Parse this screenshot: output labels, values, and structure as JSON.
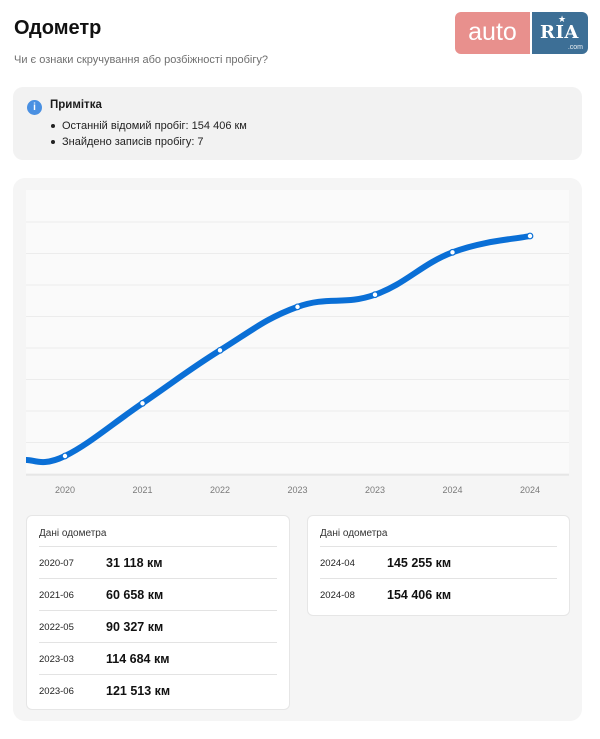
{
  "page": {
    "title": "Одометр",
    "subtitle": "Чи є ознаки скручування або розбіжності пробігу?"
  },
  "logo": {
    "part1": "auto",
    "part2": "RIA",
    "suffix": ".com"
  },
  "note": {
    "icon": "info-icon",
    "title": "Примітка",
    "items": [
      "Останній відомий пробіг: 154 406 км",
      "Знайдено записів пробігу: 7"
    ]
  },
  "colors": {
    "line": "#0a6fd6",
    "note_icon": "#4a90e2",
    "logo_auto": "#e8908d",
    "logo_ria": "#3d6f96"
  },
  "chart_data": {
    "type": "line",
    "x": [
      "2020-07",
      "2021-06",
      "2022-05",
      "2023-03",
      "2023-06",
      "2024-04",
      "2024-08"
    ],
    "tick_labels": [
      "2020",
      "2021",
      "2022",
      "2023",
      "2023",
      "2024",
      "2024"
    ],
    "series": [
      {
        "values": [
          31118,
          60658,
          90327,
          114684,
          121513,
          145255,
          154406
        ]
      }
    ],
    "grid": "horizontal",
    "legend": "none"
  },
  "tables": [
    {
      "header": "Дані одометра",
      "rows": [
        {
          "date": "2020-07",
          "km": "31 118 км"
        },
        {
          "date": "2021-06",
          "km": "60 658 км"
        },
        {
          "date": "2022-05",
          "km": "90 327 км"
        },
        {
          "date": "2023-03",
          "km": "114 684 км"
        },
        {
          "date": "2023-06",
          "km": "121 513 км"
        }
      ]
    },
    {
      "header": "Дані одометра",
      "rows": [
        {
          "date": "2024-04",
          "km": "145 255 км"
        },
        {
          "date": "2024-08",
          "km": "154 406 км"
        }
      ]
    }
  ]
}
